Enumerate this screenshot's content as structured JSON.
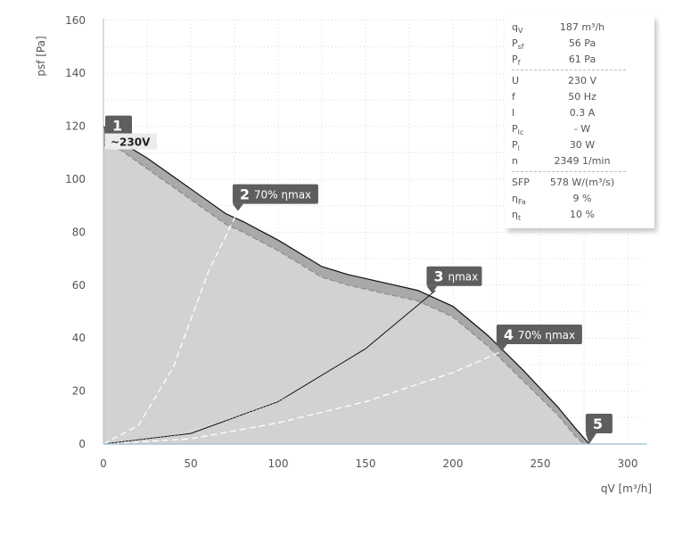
{
  "chart_data": {
    "type": "line",
    "xlabel": "qV [m³/h]",
    "ylabel": "psf [Pa]",
    "xlim": [
      0,
      310
    ],
    "ylim": [
      0,
      160
    ],
    "xticks": [
      0,
      50,
      100,
      150,
      200,
      250,
      300
    ],
    "yticks": [
      0,
      20,
      40,
      60,
      80,
      100,
      120,
      140,
      160
    ],
    "grid": true,
    "series": [
      {
        "role": "total-pressure-curve",
        "x": [
          0,
          10,
          25,
          40,
          55,
          70,
          80,
          100,
          115,
          125,
          140,
          160,
          180,
          190,
          200,
          220,
          240,
          260,
          270,
          278
        ],
        "y": [
          120,
          114,
          108,
          101,
          94,
          87,
          84,
          77,
          71,
          67,
          64,
          61,
          58,
          55,
          52,
          41,
          28,
          14,
          6,
          0
        ]
      },
      {
        "role": "static-pressure-curve",
        "x": [
          0,
          10,
          25,
          40,
          55,
          70,
          80,
          100,
          115,
          125,
          140,
          160,
          180,
          190,
          200,
          220,
          240,
          260,
          270,
          275
        ],
        "y": [
          113,
          111,
          104,
          97,
          90,
          83,
          80,
          73,
          67,
          63,
          60,
          57,
          54,
          51,
          48,
          37,
          24,
          11,
          3,
          0
        ]
      },
      {
        "role": "system-curve-70-left",
        "x": [
          0,
          20,
          40,
          60,
          77
        ],
        "y": [
          0,
          7,
          29,
          65,
          88
        ]
      },
      {
        "role": "system-curve-max",
        "x": [
          0,
          50,
          100,
          150,
          190
        ],
        "y": [
          0,
          4,
          16,
          36,
          58
        ]
      },
      {
        "role": "system-curve-70-right",
        "x": [
          0,
          50,
          100,
          150,
          200,
          228
        ],
        "y": [
          0,
          2,
          8,
          16,
          27,
          35
        ]
      }
    ],
    "markers": [
      {
        "num": "1",
        "label": "",
        "x": 0,
        "y": 120
      },
      {
        "num": "2",
        "label": "70% ηmax",
        "x": 77,
        "y": 88
      },
      {
        "num": "3",
        "label": "ηmax",
        "x": 188,
        "y": 57
      },
      {
        "num": "4",
        "label": "70% ηmax",
        "x": 228,
        "y": 35
      },
      {
        "num": "5",
        "label": "",
        "x": 278,
        "y": 0
      }
    ],
    "voltage_label": "~230V"
  },
  "infobox": {
    "group1": [
      {
        "key": "q",
        "sub": "V",
        "val": "187 m³/h"
      },
      {
        "key": "P",
        "sub": "sf",
        "val": "56 Pa"
      },
      {
        "key": "P",
        "sub": "f",
        "val": "61 Pa"
      }
    ],
    "group2": [
      {
        "key": "U",
        "sub": "",
        "val": "230 V"
      },
      {
        "key": "f",
        "sub": "",
        "val": "50 Hz"
      },
      {
        "key": "I",
        "sub": "",
        "val": "0.3 A"
      },
      {
        "key": "P",
        "sub": "lc",
        "val": "- W"
      },
      {
        "key": "P",
        "sub": "l",
        "val": "30 W"
      },
      {
        "key": "n",
        "sub": "",
        "val": "2349 1/min"
      }
    ],
    "group3": [
      {
        "key": "SFP",
        "sub": "",
        "val": "578 W/(m³/s)"
      },
      {
        "key": "η",
        "sub": "Fa",
        "val": "9 %"
      },
      {
        "key": "η",
        "sub": "t",
        "val": "10 %"
      }
    ]
  },
  "colors": {
    "fill": "#d2d2d2",
    "total_curve": "#111111",
    "static_curve": "#8a8a8a",
    "system_dashed": "#ffffff",
    "system_solid": "#111111",
    "marker_bg": "#5e5e5e",
    "grid": "#d9d9d9",
    "axis": "#a9c3d6"
  }
}
